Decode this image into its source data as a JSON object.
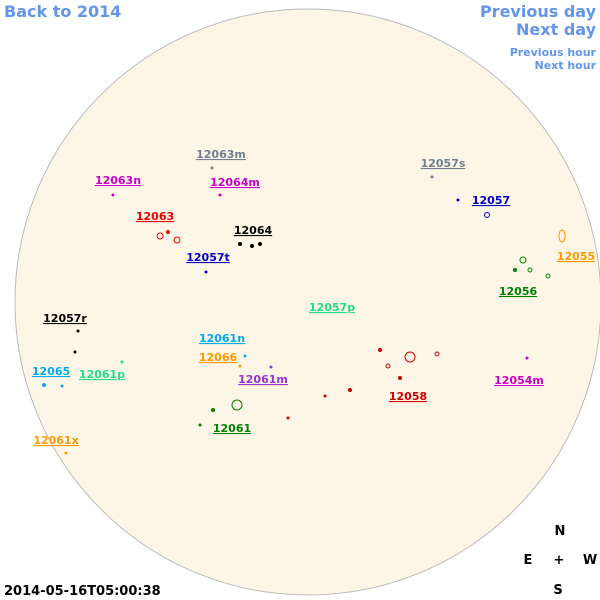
{
  "nav": {
    "back": "Back to 2014",
    "previous_day": "Previous day",
    "next_day": "Next day",
    "previous_hour": "Previous hour",
    "next_hour": "Next hour"
  },
  "regions": [
    {
      "label": "12063m",
      "color": "#708090"
    },
    {
      "label": "12057s",
      "color": "#708090"
    },
    {
      "label": "12063n",
      "color": "#cc00cc"
    },
    {
      "label": "12064m",
      "color": "#cc00cc"
    },
    {
      "label": "12057",
      "color": "#0000cc"
    },
    {
      "label": "12063",
      "color": "#ee0000"
    },
    {
      "label": "12064",
      "color": "#000000"
    },
    {
      "label": "12057t",
      "color": "#0000cc"
    },
    {
      "label": "12055",
      "color": "#ff9900"
    },
    {
      "label": "12056",
      "color": "#008000"
    },
    {
      "label": "12057p",
      "color": "#22dd88"
    },
    {
      "label": "12057r",
      "color": "#000000"
    },
    {
      "label": "12061n",
      "color": "#00aaee"
    },
    {
      "label": "12066",
      "color": "#ff9900"
    },
    {
      "label": "12065",
      "color": "#00aaee"
    },
    {
      "label": "12061p",
      "color": "#22dd88"
    },
    {
      "label": "12061m",
      "color": "#9933cc"
    },
    {
      "label": "12054m",
      "color": "#cc00cc"
    },
    {
      "label": "12058",
      "color": "#cc0000"
    },
    {
      "label": "12061x",
      "color": "#ff9900"
    },
    {
      "label": "12061",
      "color": "#008000"
    }
  ],
  "compass": {
    "north": "N",
    "east": "E",
    "center": "+",
    "west": "W",
    "south": "S"
  },
  "timestamp": "2014-05-16T05:00:38"
}
